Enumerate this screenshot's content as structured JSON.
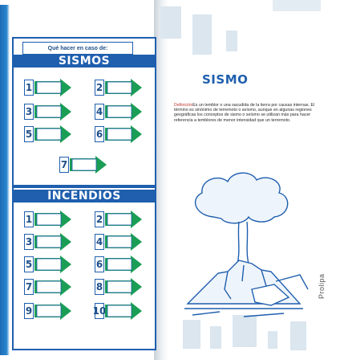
{
  "left_page": {
    "header": "Qué hacer en caso de:",
    "sections": [
      {
        "title": "SISMOS",
        "steps": [
          {
            "n": "1",
            "text": "..."
          },
          {
            "n": "2",
            "text": "..."
          },
          {
            "n": "3",
            "text": "..."
          },
          {
            "n": "4",
            "text": "..."
          },
          {
            "n": "5",
            "text": "..."
          },
          {
            "n": "6",
            "text": "..."
          },
          {
            "n": "7",
            "text": "..."
          }
        ]
      },
      {
        "title": "INCENDIOS",
        "steps": [
          {
            "n": "1",
            "text": "..."
          },
          {
            "n": "2",
            "text": "..."
          },
          {
            "n": "3",
            "text": "..."
          },
          {
            "n": "4",
            "text": "..."
          },
          {
            "n": "5",
            "text": "..."
          },
          {
            "n": "6",
            "text": "..."
          },
          {
            "n": "7",
            "text": "..."
          },
          {
            "n": "8",
            "text": "..."
          },
          {
            "n": "9",
            "text": "..."
          },
          {
            "n": "10",
            "text": "..."
          }
        ]
      }
    ]
  },
  "right_page": {
    "title": "SISMO",
    "definition_label": "Definición",
    "definition_text": "Es un temblor o una sacudida de la tierra por causas internas. El término es sinónimo de terremoto o seísmo, aunque en algunas regiones geográficas los conceptos de sismo o seísmo se utilizan más para hacer referencia a temblores de menor intensidad que un terremoto.",
    "brand": "Prolipa"
  },
  "colors": {
    "primary": "#1f5fae",
    "arrow": "#1a9e55",
    "accent": "#c0392b"
  }
}
